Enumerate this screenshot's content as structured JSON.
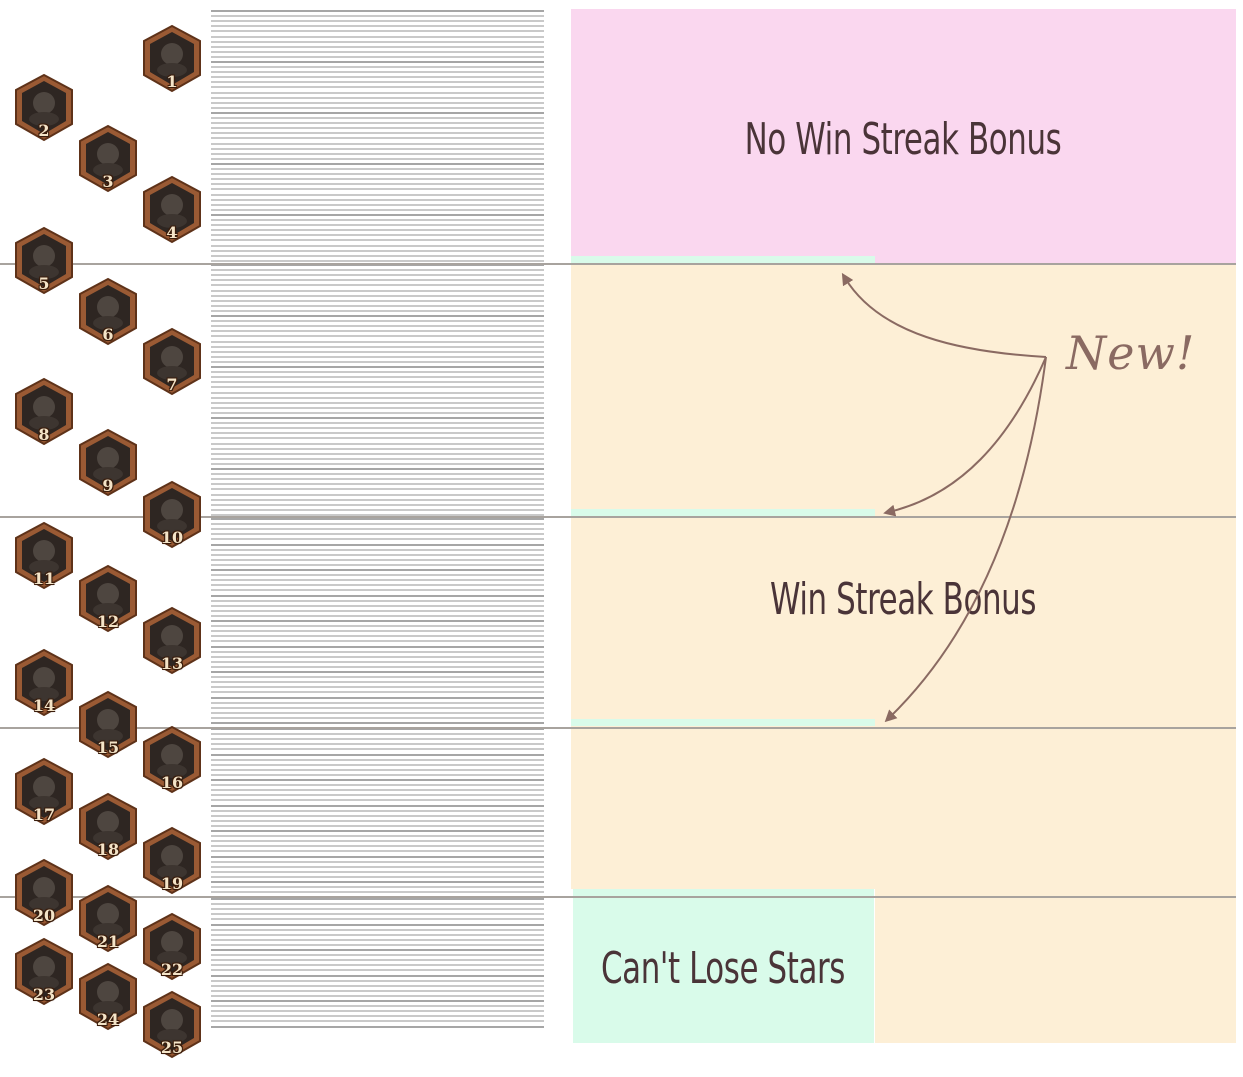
{
  "zones": {
    "no_win_streak": {
      "label": "No Win Streak Bonus",
      "color": "#fad7ef"
    },
    "win_streak": {
      "label": "Win Streak Bonus",
      "color": "#fdefd6"
    },
    "cant_lose_stars": {
      "label": "Can't Lose Stars",
      "color": "#d9fbea"
    }
  },
  "annotation": {
    "label": "New!",
    "color": "#8a6a62"
  },
  "ranks": [
    "1",
    "2",
    "3",
    "4",
    "5",
    "6",
    "7",
    "8",
    "9",
    "10",
    "11",
    "12",
    "13",
    "14",
    "15",
    "16",
    "17",
    "18",
    "19",
    "20",
    "21",
    "22",
    "23",
    "24",
    "25"
  ],
  "icons": {
    "rank_medal": "hexagon-rank-medal-icon",
    "arrow": "curved-arrow-icon"
  },
  "colors": {
    "medal_border": "#9a5a34",
    "medal_face": "#2e2622",
    "star_line": "#c9c9c9",
    "star_line_major": "#a6a6a6",
    "divider": "#a8a39e"
  }
}
